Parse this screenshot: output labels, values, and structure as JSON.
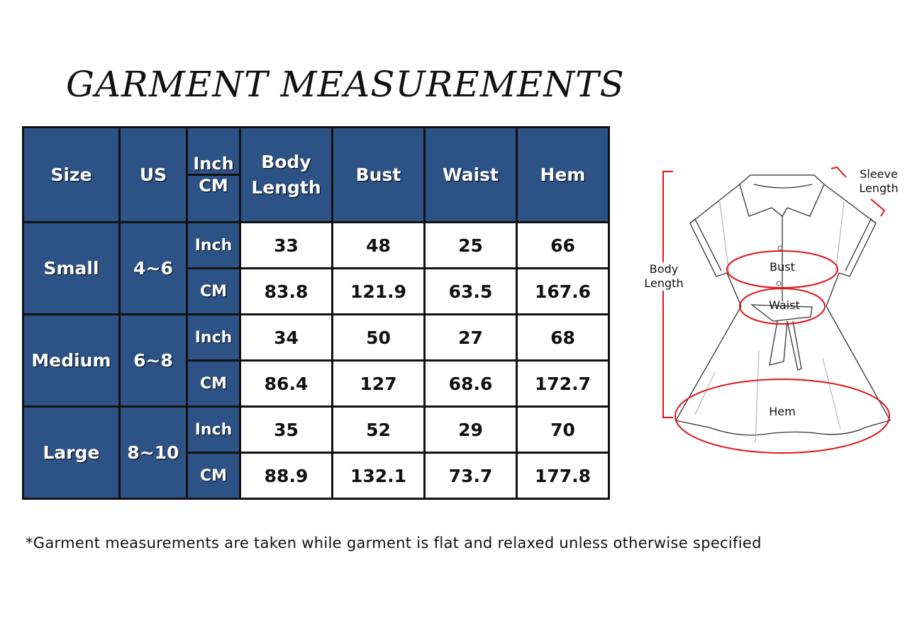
{
  "title": "GARMENT MEASUREMENTS",
  "table": {
    "headers": {
      "size": "Size",
      "us": "US",
      "unit_top": "Inch",
      "unit_bottom": "CM",
      "body_length": "Body Length",
      "bust": "Bust",
      "waist": "Waist",
      "hem": "Hem"
    },
    "rows": [
      {
        "size": "Small",
        "us": "4~6",
        "inch": {
          "unit": "Inch",
          "body_length": "33",
          "bust": "48",
          "waist": "25",
          "hem": "66"
        },
        "cm": {
          "unit": "CM",
          "body_length": "83.8",
          "bust": "121.9",
          "waist": "63.5",
          "hem": "167.6"
        }
      },
      {
        "size": "Medium",
        "us": "6~8",
        "inch": {
          "unit": "Inch",
          "body_length": "34",
          "bust": "50",
          "waist": "27",
          "hem": "68"
        },
        "cm": {
          "unit": "CM",
          "body_length": "86.4",
          "bust": "127",
          "waist": "68.6",
          "hem": "172.7"
        }
      },
      {
        "size": "Large",
        "us": "8~10",
        "inch": {
          "unit": "Inch",
          "body_length": "35",
          "bust": "52",
          "waist": "29",
          "hem": "70"
        },
        "cm": {
          "unit": "CM",
          "body_length": "88.9",
          "bust": "132.1",
          "waist": "73.7",
          "hem": "177.8"
        }
      }
    ]
  },
  "diagram": {
    "sleeve_length": "Sleeve Length",
    "body_length": "Body Length",
    "bust": "Bust",
    "waist": "Waist",
    "hem": "Hem"
  },
  "note": "*Garment measurements are taken while garment is flat and relaxed unless otherwise specified",
  "colors": {
    "header_blue": "#2d5286",
    "marker_red": "#e0141b"
  }
}
